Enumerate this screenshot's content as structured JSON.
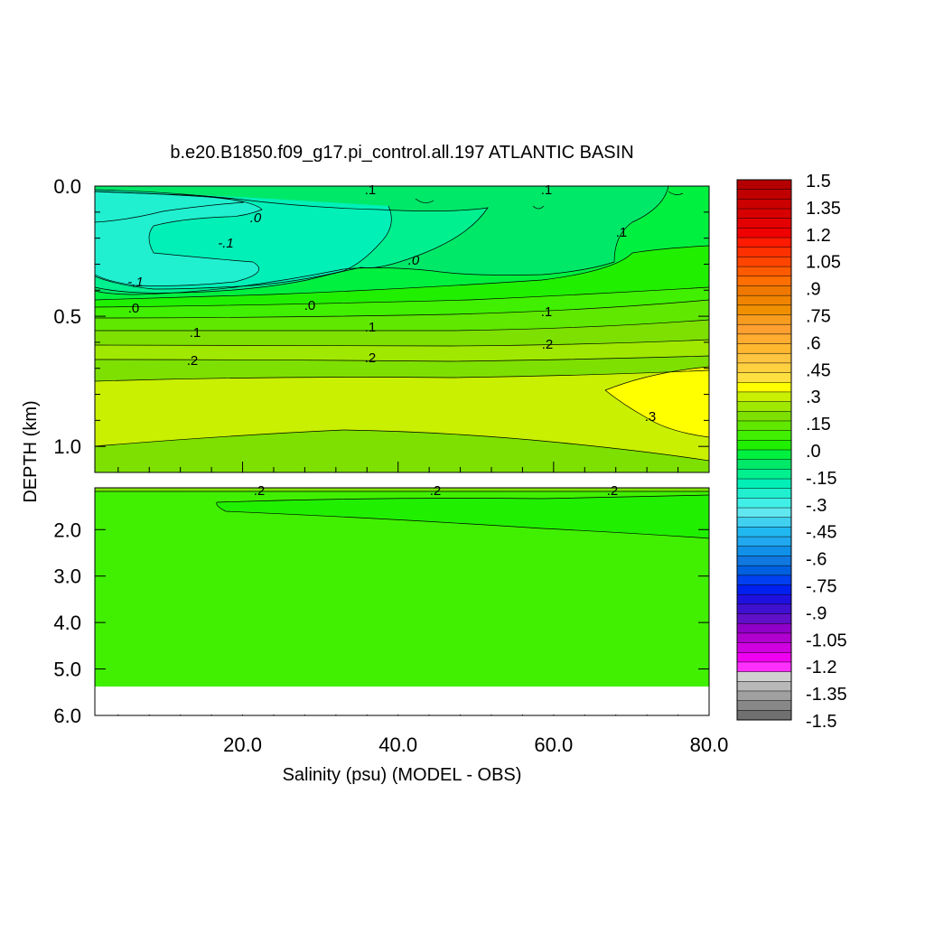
{
  "chart_data": {
    "type": "contour",
    "title": "b.e20.B1850.f09_g17.pi_control.all.197 ATLANTIC BASIN",
    "xlabel": "Salinity (psu) (MODEL - OBS)",
    "ylabel": "DEPTH (km)",
    "x_ticks": [
      "20.0",
      "40.0",
      "60.0",
      "80.0"
    ],
    "x_tick_values": [
      20,
      40,
      60,
      80
    ],
    "xlim": [
      1,
      80
    ],
    "upper_panel": {
      "y_ticks": [
        "0.0",
        "0.5",
        "1.0"
      ],
      "y_tick_values": [
        0.0,
        0.5,
        1.0
      ],
      "ylim": [
        0.0,
        1.1
      ]
    },
    "lower_panel": {
      "y_ticks": [
        "2.0",
        "3.0",
        "4.0",
        "5.0",
        "6.0"
      ],
      "y_tick_values": [
        2.0,
        3.0,
        4.0,
        5.0,
        6.0
      ],
      "ylim": [
        1.1,
        6.0
      ],
      "data_bottom_depth": 5.4
    },
    "contour_labels": [
      ".1",
      ".1",
      ".0",
      "-.1",
      ".1",
      ".0",
      "-.1",
      ".0",
      ".0",
      ".1",
      ".1",
      ".1",
      ".2",
      ".2",
      ".2",
      ".3",
      ".2",
      ".2",
      ".2"
    ],
    "colorbar": {
      "labels": [
        "1.5",
        "1.35",
        "1.2",
        "1.05",
        ".9",
        ".75",
        ".6",
        ".45",
        ".3",
        ".15",
        ".0",
        "-.15",
        "-.3",
        "-.45",
        "-.6",
        "-.75",
        "-.9",
        "-1.05",
        "-1.2",
        "-1.35",
        "-1.5"
      ],
      "levels_top_to_bottom": [
        1.5,
        1.35,
        1.2,
        1.05,
        0.9,
        0.75,
        0.6,
        0.45,
        0.3,
        0.15,
        0.0,
        -0.15,
        -0.3,
        -0.45,
        -0.6,
        -0.75,
        -0.9,
        -1.05,
        -1.2,
        -1.35,
        -1.5
      ],
      "colors_top_to_bottom": [
        "#b40000",
        "#c00000",
        "#cc0000",
        "#d80000",
        "#e40000",
        "#f00000",
        "#ff1a00",
        "#ff3000",
        "#ff4400",
        "#ff5a00",
        "#ff6e00",
        "#f07800",
        "#f08400",
        "#f09000",
        "#f89c20",
        "#ffa030",
        "#ffac30",
        "#ffb830",
        "#ffc440",
        "#ffd040",
        "#ffe040",
        "#ffff00",
        "#c8f000",
        "#a0e800",
        "#7de000",
        "#60e800",
        "#40f000",
        "#20f000",
        "#00f040",
        "#00e868",
        "#00f090",
        "#00f0b8",
        "#20f0d0",
        "#40f0e8",
        "#60e8f0",
        "#40d0f0",
        "#20b8f0",
        "#20a8f0",
        "#1090e8",
        "#1078e0",
        "#0060e0",
        "#0040f0",
        "#0020f0",
        "#2010e0",
        "#4010d0",
        "#6010c8",
        "#9000c8",
        "#b000d0",
        "#d000e0",
        "#f000f0",
        "#ff30ff",
        "#d0d0d0",
        "#b8b8b8",
        "#a0a0a0",
        "#888888",
        "#707070"
      ]
    }
  }
}
